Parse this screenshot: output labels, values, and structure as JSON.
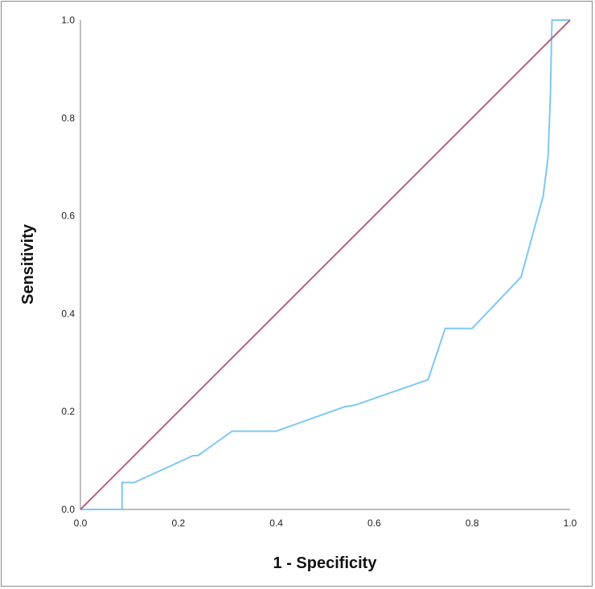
{
  "chart_data": {
    "type": "line",
    "xlabel": "1 - Specificity",
    "ylabel": "Sensitivity",
    "xlim": [
      0,
      1
    ],
    "ylim": [
      0,
      1
    ],
    "grid": false,
    "x_ticks": [
      "0.0",
      "0.2",
      "0.4",
      "0.6",
      "0.8",
      "1.0"
    ],
    "y_ticks": [
      "0.0",
      "0.2",
      "0.4",
      "0.6",
      "0.8",
      "1.0"
    ],
    "series": [
      {
        "key": "roc",
        "color": "#7ec8f0",
        "points": [
          [
            0.0,
            0.0
          ],
          [
            0.085,
            0.0
          ],
          [
            0.085,
            0.055
          ],
          [
            0.11,
            0.055
          ],
          [
            0.23,
            0.11
          ],
          [
            0.24,
            0.11
          ],
          [
            0.31,
            0.16
          ],
          [
            0.4,
            0.16
          ],
          [
            0.54,
            0.21
          ],
          [
            0.56,
            0.213
          ],
          [
            0.71,
            0.265
          ],
          [
            0.745,
            0.37
          ],
          [
            0.8,
            0.37
          ],
          [
            0.9,
            0.475
          ],
          [
            0.945,
            0.64
          ],
          [
            0.955,
            0.72
          ],
          [
            0.96,
            0.85
          ],
          [
            0.962,
            0.96
          ],
          [
            0.963,
            1.0
          ],
          [
            1.0,
            1.0
          ]
        ]
      },
      {
        "key": "reference",
        "color": "#b5617a",
        "points": [
          [
            0.0,
            0.0
          ],
          [
            1.0,
            1.0
          ]
        ]
      }
    ]
  }
}
